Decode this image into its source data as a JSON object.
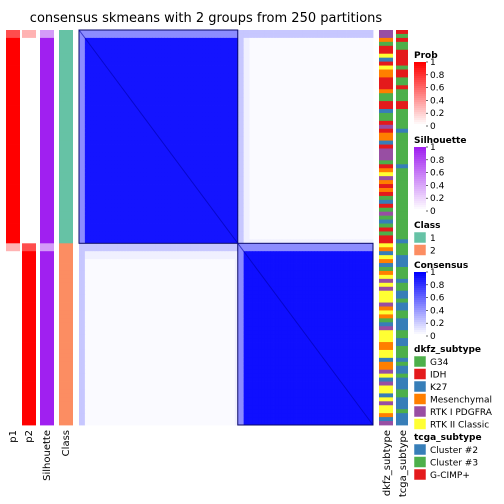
{
  "chart_data": {
    "type": "heatmap",
    "title": "consensus skmeans with 2 groups from 250 partitions",
    "n_samples": 100,
    "class_split": 54,
    "consensus_blocks": [
      {
        "class": "1",
        "size": 54,
        "within": 0.9
      },
      {
        "class": "2",
        "size": 46,
        "within": 0.88
      }
    ],
    "columns": [
      {
        "key": "p1",
        "label": "p1"
      },
      {
        "key": "p2",
        "label": "p2"
      },
      {
        "key": "silhouette",
        "label": "Silhouette"
      },
      {
        "key": "class",
        "label": "Class"
      },
      {
        "key": "dkfz",
        "label": "dkfz_subtype"
      },
      {
        "key": "tcga",
        "label": "tcga_subtype"
      }
    ],
    "legends": {
      "prob": {
        "title": "Prob",
        "ticks": [
          "1",
          "0.8",
          "0.6",
          "0.4",
          "0.2",
          "0"
        ],
        "low": "#ffffff",
        "high": "#ff0000"
      },
      "silhouette": {
        "title": "Silhouette",
        "ticks": [
          "1",
          "0.8",
          "0.6",
          "0.4",
          "0.2",
          "0"
        ],
        "low": "#ffffff",
        "high": "#a020f0"
      },
      "class": {
        "title": "Class",
        "items": [
          {
            "label": "1",
            "color": "#66c2a5"
          },
          {
            "label": "2",
            "color": "#fc8d62"
          }
        ]
      },
      "consensus": {
        "title": "Consensus",
        "ticks": [
          "1",
          "0.8",
          "0.6",
          "0.4",
          "0.2",
          "0"
        ],
        "low": "#ffffff",
        "high": "#0000ff"
      },
      "dkfz_subtype": {
        "title": "dkfz_subtype",
        "items": [
          {
            "label": "G34",
            "color": "#4daf4a"
          },
          {
            "label": "IDH",
            "color": "#e41a1c"
          },
          {
            "label": "K27",
            "color": "#377eb8"
          },
          {
            "label": "Mesenchymal",
            "color": "#ff7f00"
          },
          {
            "label": "RTK I PDGFRA",
            "color": "#984ea3"
          },
          {
            "label": "RTK II Classic",
            "color": "#ffff33"
          }
        ]
      },
      "tcga_subtype": {
        "title": "tcga_subtype",
        "items": [
          {
            "label": "Cluster #2",
            "color": "#377eb8"
          },
          {
            "label": "Cluster #3",
            "color": "#4daf4a"
          },
          {
            "label": "G-CIMP+",
            "color": "#e41a1c"
          }
        ]
      }
    }
  }
}
